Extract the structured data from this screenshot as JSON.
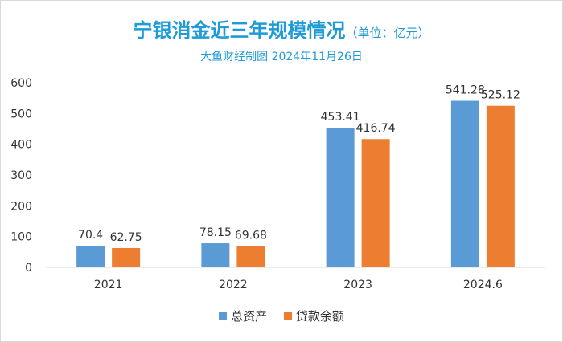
{
  "chart_data": {
    "type": "bar",
    "title": "宁银消金近三年规模情况",
    "title_unit": "（单位：亿元）",
    "subtitle": "大鱼财经制图 2024年11月26日",
    "categories": [
      "2021",
      "2022",
      "2023",
      "2024.6"
    ],
    "series": [
      {
        "name": "总资产",
        "color": "#5b9bd5",
        "values": [
          70.4,
          78.15,
          453.41,
          541.28
        ],
        "labels": [
          "70.4",
          "78.15",
          "453.41",
          "541.28"
        ]
      },
      {
        "name": "贷款余额",
        "color": "#ed7d31",
        "values": [
          62.75,
          69.68,
          416.74,
          525.12
        ],
        "labels": [
          "62.75",
          "69.68",
          "416.74",
          "525.12"
        ]
      }
    ],
    "ylim": [
      0,
      600
    ],
    "yticks": [
      "0",
      "100",
      "200",
      "300",
      "400",
      "500",
      "600"
    ],
    "grid": false,
    "legend_position": "bottom"
  }
}
